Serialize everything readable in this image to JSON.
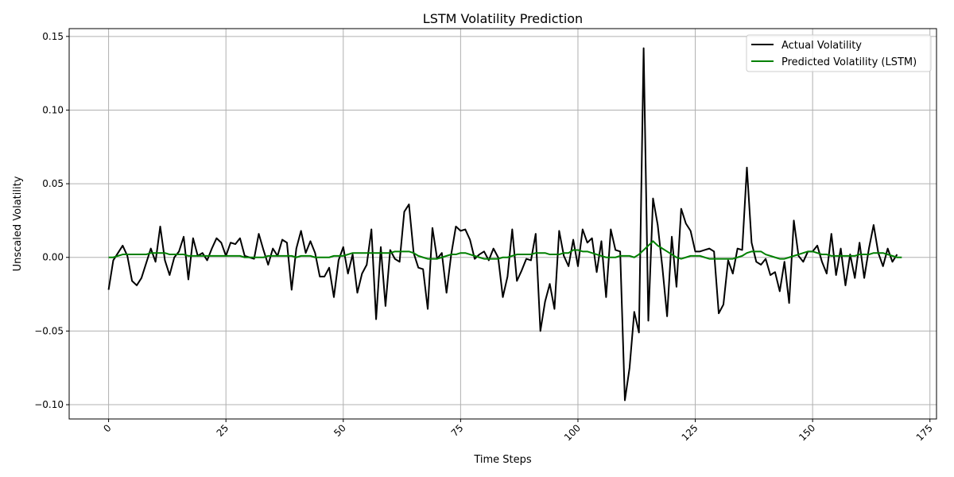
{
  "chart_data": {
    "type": "line",
    "title": "LSTM Volatility Prediction",
    "xlabel": "Time Steps",
    "ylabel": "Unscaled Volatility",
    "xlim": [
      -8.4,
      176.4
    ],
    "ylim": [
      -0.1097,
      0.1553
    ],
    "xticks": [
      0,
      25,
      50,
      75,
      100,
      125,
      150,
      175
    ],
    "xtick_labels": [
      "0",
      "25",
      "50",
      "75",
      "100",
      "125",
      "150",
      "175"
    ],
    "xtick_rotation": 45,
    "yticks": [
      -0.1,
      -0.05,
      0.0,
      0.05,
      0.1,
      0.15
    ],
    "ytick_labels": [
      "−0.10",
      "−0.05",
      "0.00",
      "0.05",
      "0.10",
      "0.15"
    ],
    "grid": true,
    "legend_position": "top-right",
    "series": [
      {
        "name": "Actual Volatility",
        "color": "#000000",
        "values": [
          -0.022,
          -0.002,
          0.003,
          0.008,
          0.001,
          -0.016,
          -0.019,
          -0.014,
          -0.004,
          0.006,
          -0.003,
          0.021,
          -0.002,
          -0.012,
          0.0,
          0.004,
          0.014,
          -0.015,
          0.013,
          0.001,
          0.003,
          -0.002,
          0.006,
          0.013,
          0.01,
          0.001,
          0.01,
          0.009,
          0.013,
          0.001,
          0.0,
          -0.001,
          0.016,
          0.005,
          -0.005,
          0.006,
          0.001,
          0.012,
          0.01,
          -0.022,
          0.006,
          0.018,
          0.003,
          0.011,
          0.003,
          -0.013,
          -0.013,
          -0.007,
          -0.027,
          -0.002,
          0.007,
          -0.011,
          0.002,
          -0.024,
          -0.011,
          -0.005,
          0.019,
          -0.042,
          0.007,
          -0.033,
          0.005,
          -0.001,
          -0.003,
          0.031,
          0.036,
          0.003,
          -0.007,
          -0.008,
          -0.035,
          0.02,
          -0.001,
          0.003,
          -0.024,
          0.002,
          0.021,
          0.018,
          0.019,
          0.012,
          -0.001,
          0.002,
          0.004,
          -0.002,
          0.006,
          0.0,
          -0.027,
          -0.013,
          0.019,
          -0.016,
          -0.009,
          -0.001,
          -0.002,
          0.016,
          -0.05,
          -0.03,
          -0.018,
          -0.035,
          0.018,
          0.001,
          -0.006,
          0.012,
          -0.006,
          0.019,
          0.01,
          0.013,
          -0.01,
          0.011,
          -0.027,
          0.019,
          0.005,
          0.004,
          -0.097,
          -0.075,
          -0.037,
          -0.051,
          0.142,
          -0.043,
          0.04,
          0.022,
          -0.007,
          -0.04,
          0.014,
          -0.02,
          0.033,
          0.023,
          0.018,
          0.004,
          0.004,
          0.005,
          0.006,
          0.004,
          -0.038,
          -0.032,
          -0.002,
          -0.011,
          0.006,
          0.005,
          0.061,
          0.01,
          -0.003,
          -0.005,
          -0.001,
          -0.012,
          -0.01,
          -0.023,
          -0.003,
          -0.031,
          0.025,
          0.001,
          -0.003,
          0.004,
          0.004,
          0.008,
          -0.003,
          -0.011,
          0.016,
          -0.012,
          0.006,
          -0.019,
          0.002,
          -0.014,
          0.01,
          -0.014,
          0.006,
          0.022,
          0.003,
          -0.006,
          0.006,
          -0.003,
          0.002
        ]
      },
      {
        "name": "Predicted Volatility (LSTM)",
        "color": "#008000",
        "values": [
          0.0,
          0.0,
          0.001,
          0.002,
          0.002,
          0.002,
          0.002,
          0.002,
          0.002,
          0.003,
          0.003,
          0.003,
          0.003,
          0.002,
          0.002,
          0.002,
          0.002,
          0.001,
          0.001,
          0.001,
          0.001,
          0.001,
          0.001,
          0.001,
          0.001,
          0.001,
          0.001,
          0.001,
          0.001,
          0.0,
          0.0,
          0.0,
          0.0,
          0.0,
          0.001,
          0.001,
          0.001,
          0.001,
          0.001,
          0.001,
          0.0,
          0.001,
          0.001,
          0.001,
          0.0,
          0.0,
          0.0,
          0.0,
          0.001,
          0.001,
          0.001,
          0.002,
          0.003,
          0.003,
          0.003,
          0.003,
          0.003,
          0.003,
          0.003,
          0.003,
          0.003,
          0.004,
          0.004,
          0.004,
          0.004,
          0.003,
          0.001,
          0.0,
          -0.001,
          -0.001,
          -0.001,
          0.0,
          0.001,
          0.002,
          0.002,
          0.003,
          0.003,
          0.002,
          0.001,
          0.0,
          -0.001,
          -0.001,
          -0.001,
          -0.001,
          0.0,
          0.0,
          0.001,
          0.002,
          0.002,
          0.002,
          0.002,
          0.003,
          0.003,
          0.003,
          0.002,
          0.002,
          0.002,
          0.003,
          0.003,
          0.005,
          0.005,
          0.004,
          0.004,
          0.003,
          0.002,
          0.001,
          0.0,
          0.0,
          0.0,
          0.001,
          0.001,
          0.001,
          0.0,
          0.002,
          0.005,
          0.008,
          0.011,
          0.008,
          0.006,
          0.004,
          0.002,
          0.0,
          -0.001,
          0.0,
          0.001,
          0.001,
          0.001,
          0.0,
          -0.001,
          -0.001,
          -0.001,
          -0.001,
          -0.001,
          -0.001,
          0.0,
          0.001,
          0.003,
          0.004,
          0.004,
          0.004,
          0.002,
          0.001,
          0.0,
          -0.001,
          -0.001,
          0.0,
          0.001,
          0.002,
          0.003,
          0.004,
          0.004,
          0.003,
          0.002,
          0.002,
          0.001,
          0.001,
          0.001,
          0.001,
          0.001,
          0.001,
          0.002,
          0.002,
          0.002,
          0.003,
          0.003,
          0.003,
          0.002,
          0.001,
          0.0,
          0.0
        ]
      }
    ]
  }
}
